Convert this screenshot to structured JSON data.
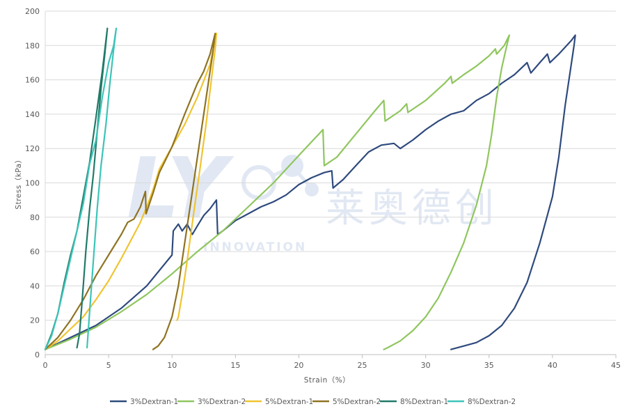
{
  "watermark": {
    "logo_letters": "LY",
    "brand_cn": "莱奥德创",
    "brand_en": "INNOVATION",
    "color": "#c9d6ea"
  },
  "chart_data": {
    "type": "line",
    "xlabel": "Strain（%）",
    "ylabel": "Stress（kPa）",
    "xlim": [
      0,
      45
    ],
    "ylim": [
      0,
      200
    ],
    "xticks": [
      0,
      5,
      10,
      15,
      20,
      25,
      30,
      35,
      40,
      45
    ],
    "yticks": [
      0,
      20,
      40,
      60,
      80,
      100,
      120,
      140,
      160,
      180,
      200
    ],
    "grid": "horizontal",
    "legend_position": "bottom",
    "series": [
      {
        "name": "3%Dextran-1",
        "color": "#2e4a7d",
        "points": [
          [
            0,
            3
          ],
          [
            2,
            10
          ],
          [
            4,
            17
          ],
          [
            6,
            27
          ],
          [
            8,
            40
          ],
          [
            10,
            58
          ],
          [
            10.1,
            72
          ],
          [
            10.5,
            76
          ],
          [
            10.8,
            72
          ],
          [
            11.2,
            76
          ],
          [
            11.6,
            70
          ],
          [
            12,
            75
          ],
          [
            12.5,
            81
          ],
          [
            13,
            85
          ],
          [
            13.5,
            90
          ],
          [
            13.6,
            70
          ],
          [
            14,
            72
          ],
          [
            15,
            78
          ],
          [
            16,
            82
          ],
          [
            17,
            86
          ],
          [
            18,
            89
          ],
          [
            19,
            93
          ],
          [
            20,
            99
          ],
          [
            21,
            103
          ],
          [
            22,
            106
          ],
          [
            22.6,
            107
          ],
          [
            22.7,
            97
          ],
          [
            23.5,
            102
          ],
          [
            24.5,
            110
          ],
          [
            25.5,
            118
          ],
          [
            26.5,
            122
          ],
          [
            27.5,
            123
          ],
          [
            28,
            120
          ],
          [
            29,
            125
          ],
          [
            30,
            131
          ],
          [
            31,
            136
          ],
          [
            32,
            140
          ],
          [
            33,
            142
          ],
          [
            34,
            148
          ],
          [
            35,
            152
          ],
          [
            36,
            158
          ],
          [
            37,
            163
          ],
          [
            38,
            170
          ],
          [
            38.3,
            164
          ],
          [
            39,
            170
          ],
          [
            39.6,
            175
          ],
          [
            39.8,
            170
          ],
          [
            40.5,
            175
          ],
          [
            41.5,
            183
          ],
          [
            41.8,
            186
          ],
          [
            41.7,
            180
          ],
          [
            41.4,
            165
          ],
          [
            41,
            145
          ],
          [
            40.5,
            115
          ],
          [
            40,
            92
          ],
          [
            39,
            65
          ],
          [
            38,
            42
          ],
          [
            37,
            27
          ],
          [
            36,
            17
          ],
          [
            35,
            11
          ],
          [
            34,
            7
          ],
          [
            33,
            5
          ],
          [
            32,
            3
          ]
        ]
      },
      {
        "name": "3%Dextran-2",
        "color": "#8fc65e",
        "points": [
          [
            0,
            3
          ],
          [
            2,
            9
          ],
          [
            4,
            16
          ],
          [
            6,
            25
          ],
          [
            8,
            35
          ],
          [
            10,
            47
          ],
          [
            12,
            60
          ],
          [
            14,
            72
          ],
          [
            16,
            86
          ],
          [
            18,
            100
          ],
          [
            20,
            116
          ],
          [
            21.9,
            131
          ],
          [
            22,
            110
          ],
          [
            23,
            115
          ],
          [
            24,
            124
          ],
          [
            25,
            133
          ],
          [
            26,
            142
          ],
          [
            26.7,
            148
          ],
          [
            26.8,
            136
          ],
          [
            28,
            142
          ],
          [
            28.5,
            146
          ],
          [
            28.6,
            141
          ],
          [
            30,
            148
          ],
          [
            31.5,
            158
          ],
          [
            32,
            162
          ],
          [
            32.1,
            158
          ],
          [
            33,
            163
          ],
          [
            34,
            168
          ],
          [
            35,
            174
          ],
          [
            35.5,
            178
          ],
          [
            35.6,
            175
          ],
          [
            36.2,
            180
          ],
          [
            36.6,
            186
          ],
          [
            36.4,
            180
          ],
          [
            36,
            167
          ],
          [
            35.6,
            150
          ],
          [
            35.2,
            128
          ],
          [
            34.8,
            110
          ],
          [
            34,
            87
          ],
          [
            33,
            65
          ],
          [
            32,
            48
          ],
          [
            31,
            33
          ],
          [
            30,
            22
          ],
          [
            29,
            14
          ],
          [
            28,
            8
          ],
          [
            27,
            4
          ],
          [
            26.7,
            3
          ]
        ]
      },
      {
        "name": "5%Dextran-1",
        "color": "#f0c430",
        "points": [
          [
            0,
            3
          ],
          [
            1,
            8
          ],
          [
            2,
            15
          ],
          [
            3,
            22
          ],
          [
            4,
            32
          ],
          [
            5,
            43
          ],
          [
            6,
            56
          ],
          [
            7,
            70
          ],
          [
            7.5,
            77
          ],
          [
            8,
            86
          ],
          [
            8.5,
            96
          ],
          [
            9,
            108
          ],
          [
            10,
            121
          ],
          [
            11,
            134
          ],
          [
            12,
            150
          ],
          [
            13,
            169
          ],
          [
            13.5,
            187
          ],
          [
            13.4,
            178
          ],
          [
            13.1,
            160
          ],
          [
            12.7,
            135
          ],
          [
            12.2,
            108
          ],
          [
            11.7,
            82
          ],
          [
            11.2,
            55
          ],
          [
            10.8,
            35
          ],
          [
            10.5,
            22
          ],
          [
            10.4,
            20
          ]
        ]
      },
      {
        "name": "5%Dextran-2",
        "color": "#8f7322",
        "points": [
          [
            0,
            3
          ],
          [
            1,
            10
          ],
          [
            2,
            20
          ],
          [
            3,
            32
          ],
          [
            4,
            46
          ],
          [
            5,
            58
          ],
          [
            6,
            70
          ],
          [
            6.5,
            77
          ],
          [
            7,
            79
          ],
          [
            7.5,
            86
          ],
          [
            7.9,
            95
          ],
          [
            7.95,
            82
          ],
          [
            8.5,
            94
          ],
          [
            9,
            106
          ],
          [
            10,
            121
          ],
          [
            11,
            140
          ],
          [
            12,
            158
          ],
          [
            12.5,
            165
          ],
          [
            13,
            175
          ],
          [
            13.4,
            187
          ],
          [
            13.2,
            175
          ],
          [
            12.7,
            150
          ],
          [
            12.1,
            120
          ],
          [
            11.5,
            90
          ],
          [
            11,
            65
          ],
          [
            10.5,
            40
          ],
          [
            10,
            22
          ],
          [
            9.4,
            10
          ],
          [
            8.9,
            5
          ],
          [
            8.5,
            3
          ]
        ]
      },
      {
        "name": "8%Dextran-1",
        "color": "#217a68",
        "points": [
          [
            0,
            3
          ],
          [
            0.5,
            12
          ],
          [
            1,
            24
          ],
          [
            1.5,
            42
          ],
          [
            2,
            58
          ],
          [
            2.5,
            72
          ],
          [
            3,
            92
          ],
          [
            3.5,
            112
          ],
          [
            4,
            138
          ],
          [
            4.5,
            165
          ],
          [
            4.9,
            190
          ],
          [
            4.7,
            175
          ],
          [
            4.4,
            155
          ],
          [
            4.1,
            130
          ],
          [
            3.8,
            105
          ],
          [
            3.5,
            85
          ],
          [
            3.2,
            60
          ],
          [
            2.9,
            30
          ],
          [
            2.7,
            12
          ],
          [
            2.5,
            4
          ]
        ]
      },
      {
        "name": "8%Dextran-2",
        "color": "#3cc4b8",
        "points": [
          [
            0,
            3
          ],
          [
            0.5,
            11
          ],
          [
            1,
            24
          ],
          [
            1.5,
            40
          ],
          [
            2,
            56
          ],
          [
            2.5,
            72
          ],
          [
            3,
            88
          ],
          [
            3.5,
            111
          ],
          [
            4,
            125
          ],
          [
            4.5,
            150
          ],
          [
            5,
            170
          ],
          [
            5.4,
            180
          ],
          [
            5.6,
            190
          ],
          [
            5.4,
            178
          ],
          [
            5.1,
            158
          ],
          [
            4.8,
            135
          ],
          [
            4.4,
            110
          ],
          [
            4.1,
            85
          ],
          [
            3.8,
            55
          ],
          [
            3.5,
            25
          ],
          [
            3.3,
            4
          ]
        ]
      }
    ]
  }
}
